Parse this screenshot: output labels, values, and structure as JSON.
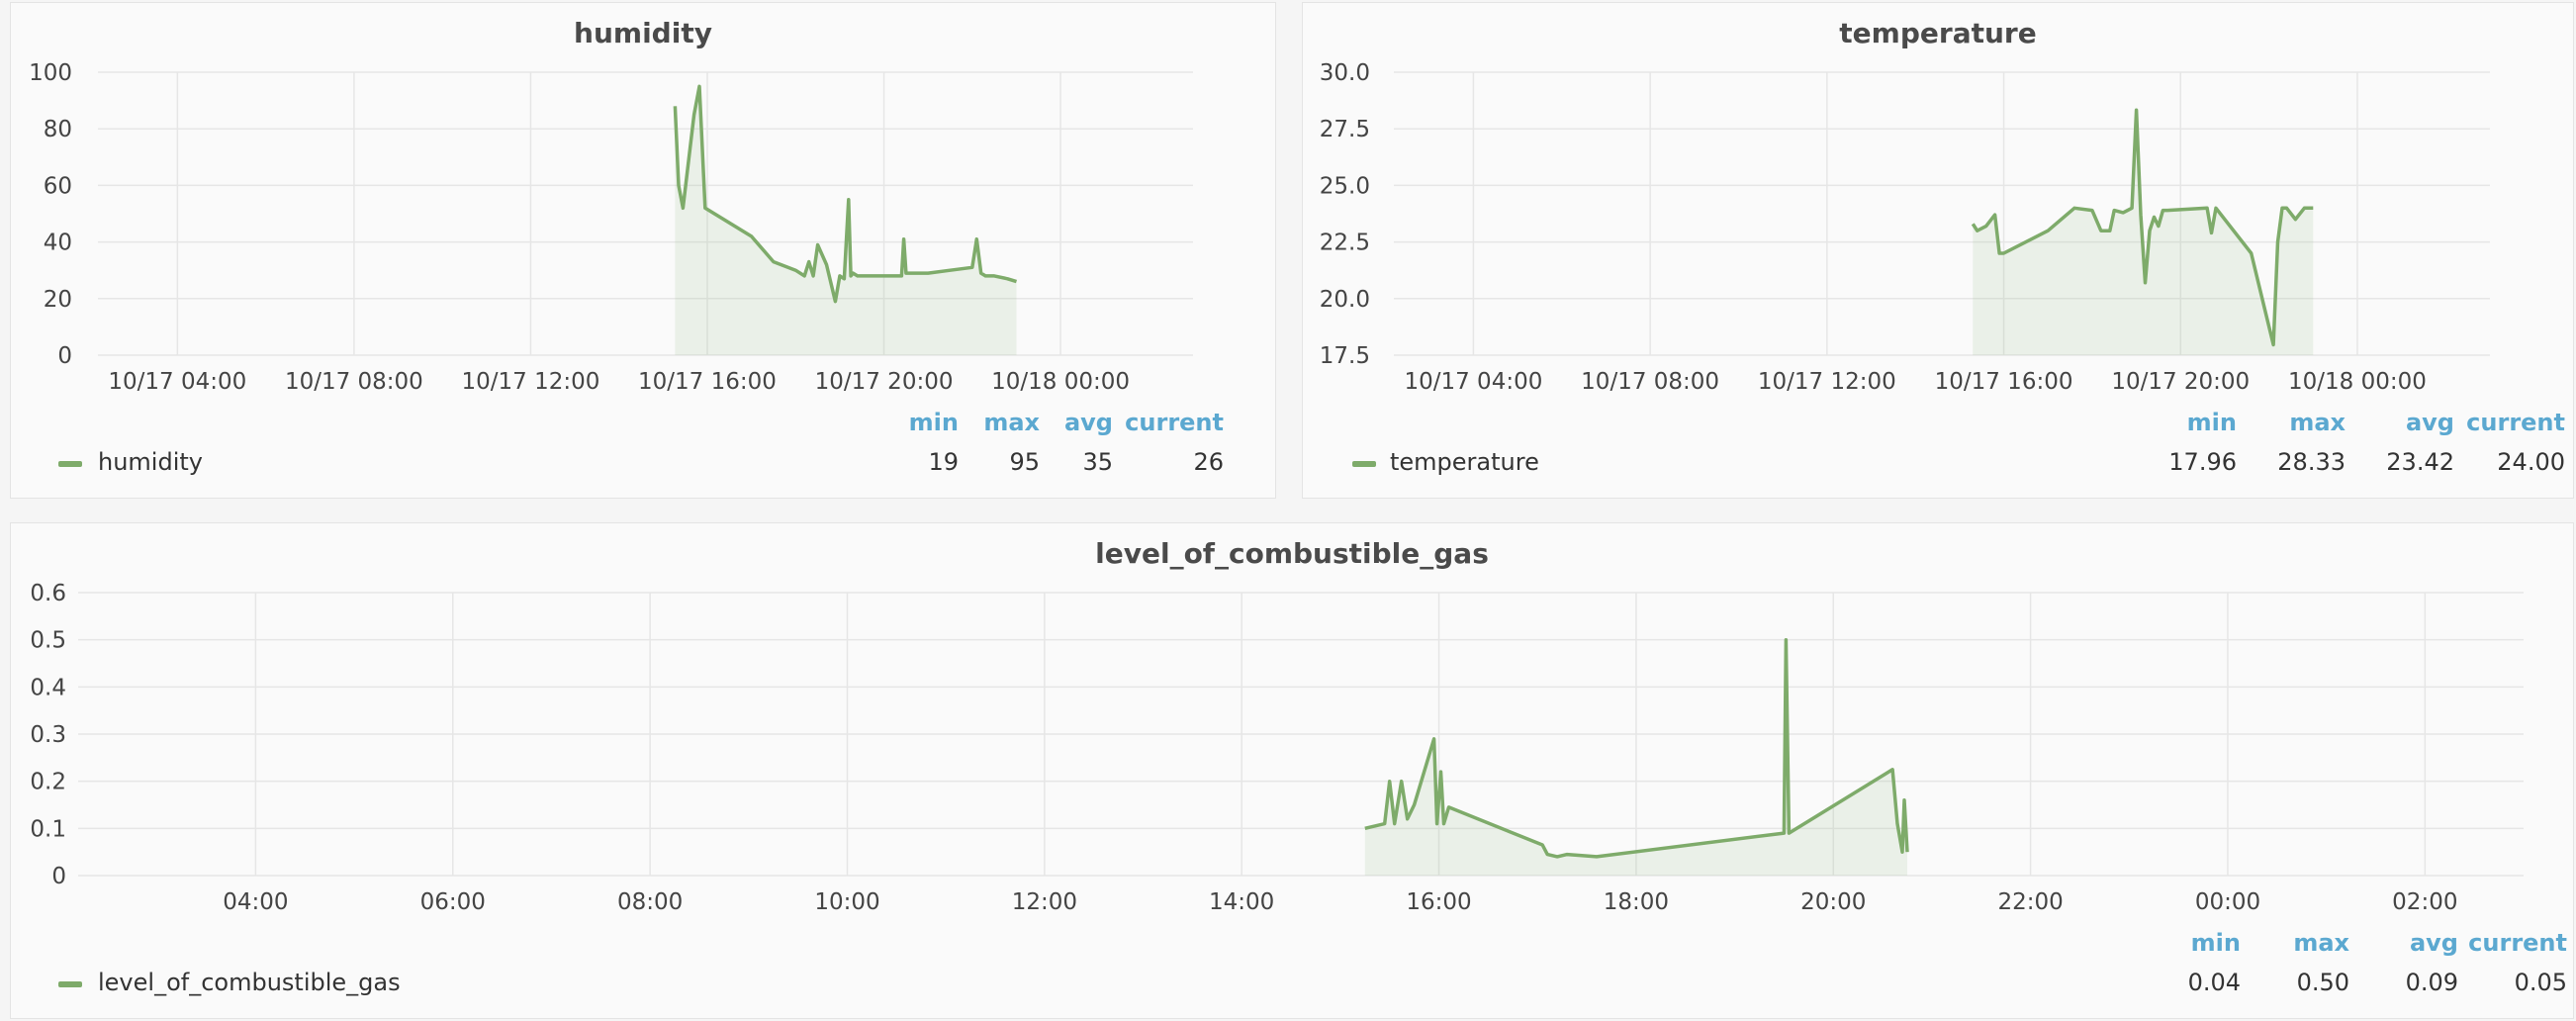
{
  "colors": {
    "series": "#7eab6a",
    "fill": "#7eab6a",
    "legend_header": "#5ba8d0"
  },
  "panels": {
    "humidity": {
      "title": "humidity",
      "legend": {
        "headers": [
          "min",
          "max",
          "avg",
          "current"
        ],
        "series_name": "humidity",
        "values": [
          "19",
          "95",
          "35",
          "26"
        ]
      }
    },
    "temperature": {
      "title": "temperature",
      "legend": {
        "headers": [
          "min",
          "max",
          "avg",
          "current"
        ],
        "series_name": "temperature",
        "values": [
          "17.96",
          "28.33",
          "23.42",
          "24.00"
        ]
      }
    },
    "gas": {
      "title": "level_of_combustible_gas",
      "legend": {
        "headers": [
          "min",
          "max",
          "avg",
          "current"
        ],
        "series_name": "level_of_combustible_gas",
        "values": [
          "0.04",
          "0.50",
          "0.09",
          "0.05"
        ]
      }
    }
  },
  "chart_data": [
    {
      "type": "area",
      "title": "humidity",
      "xlabel": "",
      "ylabel": "",
      "x_unit": "hours since 10/17 00:00",
      "xlim": [
        2.2,
        27.0
      ],
      "ylim": [
        0,
        100
      ],
      "yticks": [
        0,
        20,
        40,
        60,
        80,
        100
      ],
      "ytick_labels": [
        "0",
        "20",
        "40",
        "60",
        "80",
        "100"
      ],
      "xticks": [
        4,
        8,
        12,
        16,
        20,
        24
      ],
      "xtick_labels": [
        "10/17 04:00",
        "10/17 08:00",
        "10/17 12:00",
        "10/17 16:00",
        "10/17 20:00",
        "10/18 00:00"
      ],
      "grid": true,
      "legend": "bottom",
      "series": [
        {
          "name": "humidity",
          "x": [
            15.27,
            15.35,
            15.45,
            15.7,
            15.82,
            15.95,
            17.0,
            17.5,
            18.0,
            18.2,
            18.3,
            18.4,
            18.5,
            18.7,
            18.9,
            19.0,
            19.1,
            19.2,
            19.25,
            19.3,
            19.4,
            20.0,
            20.4,
            20.45,
            20.5,
            21.0,
            21.5,
            22.0,
            22.1,
            22.2,
            22.3,
            22.5,
            22.8,
            23.0
          ],
          "values": [
            88,
            60,
            52,
            85,
            95,
            52,
            42,
            33,
            30,
            28,
            33,
            28,
            39,
            32,
            19,
            28,
            27,
            55,
            28,
            29,
            28,
            28,
            28,
            41,
            29,
            29,
            30,
            31,
            41,
            29,
            28,
            28,
            27,
            26
          ]
        }
      ]
    },
    {
      "type": "area",
      "title": "temperature",
      "xlabel": "",
      "ylabel": "",
      "x_unit": "hours since 10/17 00:00",
      "xlim": [
        2.2,
        27.0
      ],
      "ylim": [
        17.5,
        30.0
      ],
      "yticks": [
        17.5,
        20.0,
        22.5,
        25.0,
        27.5,
        30.0
      ],
      "ytick_labels": [
        "17.5",
        "20.0",
        "22.5",
        "25.0",
        "27.5",
        "30.0"
      ],
      "xticks": [
        4,
        8,
        12,
        16,
        20,
        24
      ],
      "xtick_labels": [
        "10/17 04:00",
        "10/17 08:00",
        "10/17 12:00",
        "10/17 16:00",
        "10/17 20:00",
        "10/18 00:00"
      ],
      "grid": true,
      "legend": "bottom",
      "series": [
        {
          "name": "temperature",
          "x": [
            15.3,
            15.4,
            15.6,
            15.8,
            15.9,
            16.0,
            17.0,
            17.6,
            18.0,
            18.2,
            18.4,
            18.5,
            18.7,
            18.9,
            19.0,
            19.1,
            19.2,
            19.3,
            19.4,
            19.5,
            19.6,
            19.7,
            20.6,
            20.7,
            20.8,
            21.6,
            22.1,
            22.2,
            22.3,
            22.4,
            22.6,
            22.8,
            23.0
          ],
          "values": [
            23.3,
            23.0,
            23.2,
            23.7,
            22.0,
            22.0,
            23.0,
            24.0,
            23.9,
            23.0,
            23.0,
            23.9,
            23.8,
            24.0,
            28.33,
            23.7,
            20.7,
            23.0,
            23.6,
            23.2,
            23.9,
            23.9,
            24.0,
            22.9,
            24.0,
            22.0,
            17.96,
            22.5,
            24.0,
            24.0,
            23.5,
            24.0,
            24.0
          ]
        }
      ]
    },
    {
      "type": "area",
      "title": "level_of_combustible_gas",
      "xlabel": "",
      "ylabel": "",
      "x_unit": "hours since 10/17 00:00",
      "xlim": [
        2.2,
        27.0
      ],
      "ylim": [
        0,
        0.6
      ],
      "yticks": [
        0,
        0.1,
        0.2,
        0.3,
        0.4,
        0.5,
        0.6
      ],
      "ytick_labels": [
        "0",
        "0.1",
        "0.2",
        "0.3",
        "0.4",
        "0.5",
        "0.6"
      ],
      "xticks": [
        4,
        6,
        8,
        10,
        12,
        14,
        16,
        18,
        20,
        22,
        24,
        26
      ],
      "xtick_labels": [
        "04:00",
        "06:00",
        "08:00",
        "10:00",
        "12:00",
        "14:00",
        "16:00",
        "18:00",
        "20:00",
        "22:00",
        "00:00",
        "02:00"
      ],
      "grid": true,
      "legend": "bottom",
      "series": [
        {
          "name": "level_of_combustible_gas",
          "x": [
            15.25,
            15.45,
            15.5,
            15.55,
            15.62,
            15.68,
            15.75,
            15.95,
            15.98,
            16.02,
            16.05,
            16.1,
            17.05,
            17.1,
            17.2,
            17.3,
            17.6,
            19.5,
            19.52,
            19.55,
            20.6,
            20.65,
            20.7,
            20.72,
            20.75
          ],
          "values": [
            0.1,
            0.11,
            0.2,
            0.11,
            0.2,
            0.12,
            0.15,
            0.29,
            0.11,
            0.22,
            0.11,
            0.145,
            0.065,
            0.045,
            0.04,
            0.045,
            0.04,
            0.09,
            0.5,
            0.09,
            0.225,
            0.11,
            0.05,
            0.16,
            0.05
          ]
        }
      ]
    }
  ]
}
